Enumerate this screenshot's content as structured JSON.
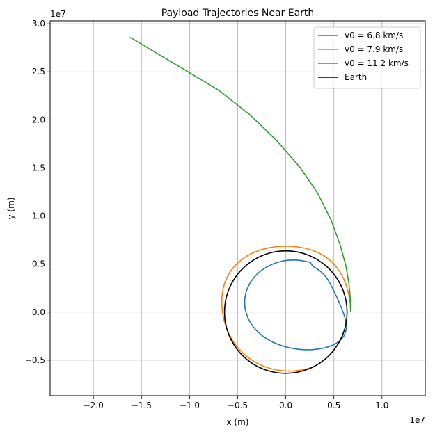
{
  "chart_data": {
    "type": "line",
    "title": "Payload Trajectories Near Earth",
    "xlabel": "x (m)",
    "ylabel": "y (m)",
    "x_offset_text": "1e7",
    "y_offset_text": "1e7",
    "xlim": [
      -2.45,
      1.45
    ],
    "ylim": [
      -0.87,
      3.03
    ],
    "x_ticks": [
      -2.0,
      -1.5,
      -1.0,
      -0.5,
      0.0,
      0.5,
      1.0
    ],
    "x_tick_labels": [
      "−2.0",
      "−1.5",
      "−1.0",
      "−0.5",
      "0.0",
      "0.5",
      "1.0"
    ],
    "y_ticks": [
      -0.5,
      0.0,
      0.5,
      1.0,
      1.5,
      2.0,
      2.5,
      3.0
    ],
    "y_tick_labels": [
      "−0.5",
      "0.0",
      "0.5",
      "1.0",
      "1.5",
      "2.0",
      "2.5",
      "3.0"
    ],
    "grid": true,
    "legend_position": "top-right",
    "series": [
      {
        "name": "v0 = 6.8 km/s",
        "color": "#1f77b4",
        "points": [
          [
            0.2556,
            0.5168
          ],
          [
            0.2017,
            0.5288
          ],
          [
            0.1451,
            0.5388
          ],
          [
            0.0868,
            0.5425
          ],
          [
            0.0271,
            0.5401
          ],
          [
            -0.0323,
            0.5313
          ],
          [
            -0.0906,
            0.5165
          ],
          [
            -0.1471,
            0.4955
          ],
          [
            -0.2006,
            0.4686
          ],
          [
            -0.2503,
            0.4361
          ],
          [
            -0.2953,
            0.3984
          ],
          [
            -0.3347,
            0.3562
          ],
          [
            -0.3677,
            0.3101
          ],
          [
            -0.3939,
            0.2608
          ],
          [
            -0.4129,
            0.209
          ],
          [
            -0.4243,
            0.1556
          ],
          [
            -0.428,
            0.1014
          ],
          [
            -0.424,
            0.047
          ],
          [
            -0.4125,
            -0.0068
          ],
          [
            -0.3934,
            -0.0594
          ],
          [
            -0.367,
            -0.11
          ],
          [
            -0.3335,
            -0.1579
          ],
          [
            -0.2932,
            -0.2026
          ],
          [
            -0.2465,
            -0.2434
          ],
          [
            -0.194,
            -0.28
          ],
          [
            -0.1363,
            -0.3118
          ],
          [
            -0.0741,
            -0.3385
          ],
          [
            -0.0083,
            -0.36
          ],
          [
            0.06,
            -0.376
          ],
          [
            0.1297,
            -0.3865
          ],
          [
            0.1995,
            -0.3914
          ],
          [
            0.2681,
            -0.3908
          ],
          [
            0.3341,
            -0.3848
          ],
          [
            0.3963,
            -0.3735
          ],
          [
            0.4533,
            -0.3572
          ],
          [
            0.5038,
            -0.3359
          ],
          [
            0.5468,
            -0.3099
          ],
          [
            0.5812,
            -0.2793
          ],
          [
            0.6066,
            -0.2445
          ],
          [
            0.6226,
            -0.2055
          ],
          [
            0.6293,
            -0.1627
          ],
          [
            0.6272,
            -0.1164
          ],
          [
            0.6174,
            -0.0669
          ],
          [
            0.6012,
            -0.0144
          ],
          [
            0.5803,
            0.0405
          ],
          [
            0.5566,
            0.0968
          ],
          [
            0.5316,
            0.153
          ],
          [
            0.5066,
            0.2072
          ],
          [
            0.4822,
            0.2572
          ],
          [
            0.4589,
            0.3013
          ],
          [
            0.4366,
            0.3389
          ],
          [
            0.4147,
            0.3701
          ],
          [
            0.3925,
            0.396
          ],
          [
            0.3689,
            0.4179
          ],
          [
            0.3429,
            0.4377
          ],
          [
            0.3137,
            0.457
          ],
          [
            0.2804,
            0.4772
          ],
          [
            0.2556,
            0.5168
          ]
        ]
      },
      {
        "name": "v0 = 7.9 km/s",
        "color": "#ff7f0e",
        "points": [
          [
            0.675,
            0.0
          ],
          [
            0.67,
            0.09
          ],
          [
            0.656,
            0.182
          ],
          [
            0.632,
            0.27
          ],
          [
            0.6,
            0.351
          ],
          [
            0.56,
            0.423
          ],
          [
            0.513,
            0.486
          ],
          [
            0.46,
            0.539
          ],
          [
            0.402,
            0.583
          ],
          [
            0.339,
            0.618
          ],
          [
            0.272,
            0.645
          ],
          [
            0.202,
            0.665
          ],
          [
            0.13,
            0.678
          ],
          [
            0.056,
            0.685
          ],
          [
            -0.02,
            0.686
          ],
          [
            -0.097,
            0.681
          ],
          [
            -0.174,
            0.67
          ],
          [
            -0.251,
            0.651
          ],
          [
            -0.325,
            0.624
          ],
          [
            -0.395,
            0.589
          ],
          [
            -0.46,
            0.546
          ],
          [
            -0.518,
            0.495
          ],
          [
            -0.567,
            0.437
          ],
          [
            -0.606,
            0.373
          ],
          [
            -0.635,
            0.304
          ],
          [
            -0.654,
            0.231
          ],
          [
            -0.664,
            0.155
          ],
          [
            -0.665,
            0.077
          ],
          [
            -0.658,
            -0.001
          ],
          [
            -0.643,
            -0.079
          ],
          [
            -0.62,
            -0.156
          ],
          [
            -0.589,
            -0.23
          ],
          [
            -0.55,
            -0.301
          ],
          [
            -0.503,
            -0.366
          ],
          [
            -0.448,
            -0.425
          ],
          [
            -0.386,
            -0.477
          ],
          [
            -0.318,
            -0.521
          ],
          [
            -0.245,
            -0.557
          ],
          [
            -0.169,
            -0.584
          ],
          [
            -0.091,
            -0.602
          ],
          [
            -0.012,
            -0.612
          ],
          [
            0.066,
            -0.613
          ],
          [
            0.142,
            -0.606
          ],
          [
            0.213,
            -0.592
          ],
          [
            0.276,
            -0.574
          ],
          [
            0.305,
            -0.563
          ]
        ]
      },
      {
        "name": "v0 = 11.2 km/s",
        "color": "#2ca02c",
        "points": [
          [
            0.675,
            0.0
          ],
          [
            0.67,
            0.15
          ],
          [
            0.656,
            0.3
          ],
          [
            0.625,
            0.48
          ],
          [
            0.565,
            0.7
          ],
          [
            0.47,
            0.96
          ],
          [
            0.33,
            1.24
          ],
          [
            0.145,
            1.51
          ],
          [
            -0.09,
            1.78
          ],
          [
            -0.37,
            2.05
          ],
          [
            -0.7,
            2.31
          ],
          [
            -1.1,
            2.55
          ],
          [
            -1.62,
            2.86
          ]
        ]
      },
      {
        "name": "Earth",
        "color": "#000000",
        "circle": {
          "cx": 0,
          "cy": 0,
          "r": 0.6371
        }
      }
    ]
  }
}
